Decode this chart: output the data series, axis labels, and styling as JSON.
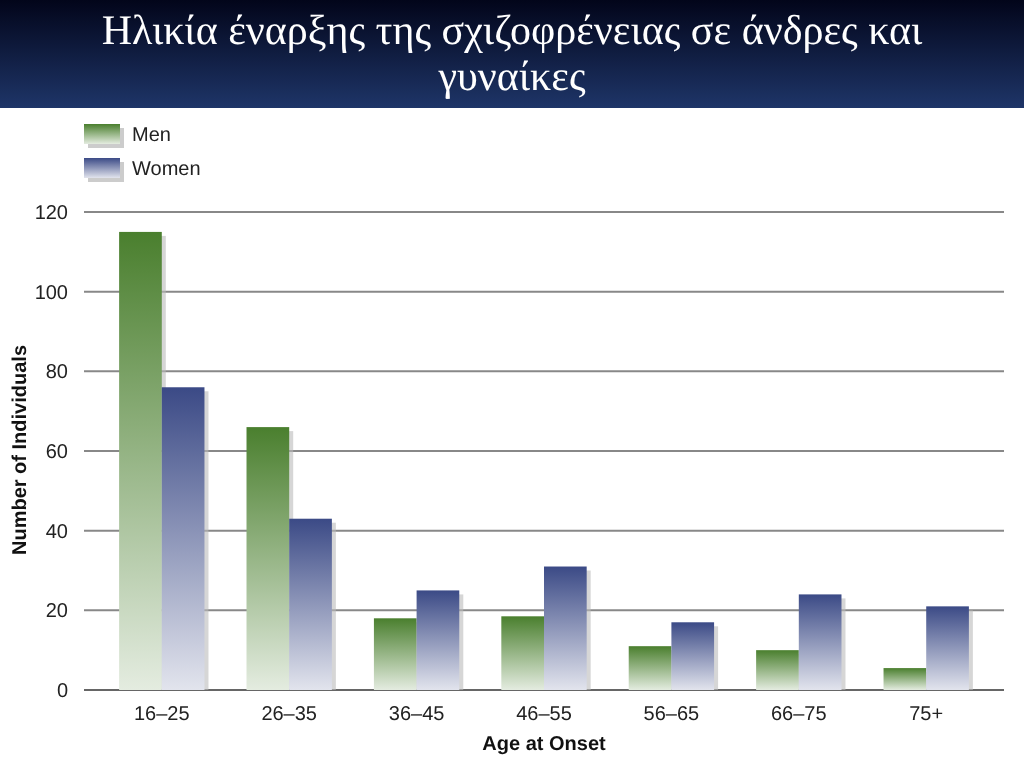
{
  "chart_data": {
    "type": "bar",
    "title": "Ηλικία έναρξης της σχιζοφρένειας σε άνδρες και γυναίκες",
    "xlabel": "Age at Onset",
    "ylabel": "Number of Individuals",
    "categories": [
      "16–25",
      "26–35",
      "36–45",
      "46–55",
      "56–65",
      "66–75",
      "75+"
    ],
    "series": [
      {
        "name": "Men",
        "color": "#4a7f2e",
        "values": [
          115,
          66,
          18,
          18.5,
          11,
          10,
          5.5
        ]
      },
      {
        "name": "Women",
        "color": "#3b4a86",
        "values": [
          76,
          43,
          25,
          31,
          17,
          24,
          21
        ]
      }
    ],
    "ylim": [
      0,
      120
    ],
    "yticks": [
      0,
      20,
      40,
      60,
      80,
      100,
      120
    ],
    "grid": "y",
    "legend": "top left"
  }
}
